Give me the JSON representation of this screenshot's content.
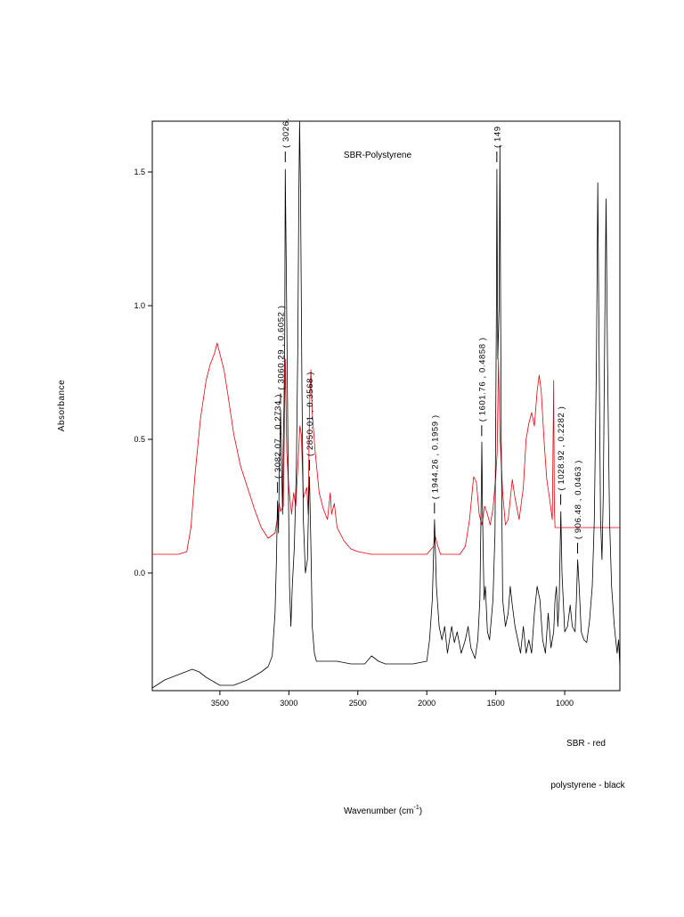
{
  "chart_data": {
    "type": "line",
    "title": "SBR-Polystyrene",
    "xlabel": "Wavenumber (cm",
    "xlabel_superscript": "-1",
    "xlabel_suffix": ")",
    "ylabel": "Absorbance",
    "xlim": [
      3990,
      600
    ],
    "ylim": [
      -0.44,
      1.69
    ],
    "x_reversed": true,
    "grid": false,
    "legend_text": [
      "SBR - red",
      "polystyrene - black"
    ],
    "x_ticks": [
      {
        "value": 3500,
        "label": "3500"
      },
      {
        "value": 3000,
        "label": "3000"
      },
      {
        "value": 2500,
        "label": "2500"
      },
      {
        "value": 2000,
        "label": "2000"
      },
      {
        "value": 1500,
        "label": "1500"
      },
      {
        "value": 1000,
        "label": "1000"
      }
    ],
    "y_ticks": [
      {
        "value": 0.0,
        "label": "0.0"
      },
      {
        "value": 0.5,
        "label": "0.5"
      },
      {
        "value": 1.0,
        "label": "1.0"
      },
      {
        "value": 1.5,
        "label": "1.5"
      }
    ],
    "series": [
      {
        "name": "SBR",
        "color": "#e8000b",
        "points": [
          [
            3990,
            0.07
          ],
          [
            3900,
            0.07
          ],
          [
            3800,
            0.07
          ],
          [
            3740,
            0.08
          ],
          [
            3710,
            0.17
          ],
          [
            3680,
            0.37
          ],
          [
            3640,
            0.58
          ],
          [
            3600,
            0.72
          ],
          [
            3570,
            0.78
          ],
          [
            3540,
            0.82
          ],
          [
            3520,
            0.86
          ],
          [
            3500,
            0.82
          ],
          [
            3470,
            0.76
          ],
          [
            3440,
            0.66
          ],
          [
            3400,
            0.52
          ],
          [
            3350,
            0.4
          ],
          [
            3300,
            0.32
          ],
          [
            3250,
            0.24
          ],
          [
            3200,
            0.17
          ],
          [
            3150,
            0.13
          ],
          [
            3100,
            0.15
          ],
          [
            3085,
            0.2
          ],
          [
            3070,
            0.26
          ],
          [
            3060,
            0.23
          ],
          [
            3040,
            0.25
          ],
          [
            3025,
            0.8
          ],
          [
            3015,
            0.45
          ],
          [
            3000,
            0.32
          ],
          [
            2980,
            0.22
          ],
          [
            2965,
            0.3
          ],
          [
            2950,
            0.25
          ],
          [
            2930,
            0.45
          ],
          [
            2920,
            0.55
          ],
          [
            2910,
            0.52
          ],
          [
            2895,
            0.28
          ],
          [
            2870,
            0.32
          ],
          [
            2860,
            0.22
          ],
          [
            2850,
            0.62
          ],
          [
            2840,
            0.76
          ],
          [
            2830,
            0.6
          ],
          [
            2810,
            0.46
          ],
          [
            2780,
            0.3
          ],
          [
            2750,
            0.24
          ],
          [
            2720,
            0.2
          ],
          [
            2700,
            0.3
          ],
          [
            2690,
            0.22
          ],
          [
            2670,
            0.26
          ],
          [
            2650,
            0.17
          ],
          [
            2600,
            0.12
          ],
          [
            2550,
            0.09
          ],
          [
            2500,
            0.08
          ],
          [
            2400,
            0.07
          ],
          [
            2300,
            0.07
          ],
          [
            2200,
            0.07
          ],
          [
            2100,
            0.07
          ],
          [
            2000,
            0.07
          ],
          [
            1950,
            0.1
          ],
          [
            1940,
            0.14
          ],
          [
            1920,
            0.1
          ],
          [
            1900,
            0.07
          ],
          [
            1850,
            0.07
          ],
          [
            1800,
            0.07
          ],
          [
            1760,
            0.07
          ],
          [
            1720,
            0.1
          ],
          [
            1690,
            0.2
          ],
          [
            1660,
            0.36
          ],
          [
            1640,
            0.34
          ],
          [
            1620,
            0.22
          ],
          [
            1600,
            0.18
          ],
          [
            1580,
            0.25
          ],
          [
            1560,
            0.22
          ],
          [
            1540,
            0.18
          ],
          [
            1520,
            0.24
          ],
          [
            1500,
            0.36
          ],
          [
            1490,
            0.45
          ],
          [
            1480,
            0.8
          ],
          [
            1470,
            0.52
          ],
          [
            1450,
            0.3
          ],
          [
            1430,
            0.18
          ],
          [
            1410,
            0.2
          ],
          [
            1380,
            0.35
          ],
          [
            1360,
            0.28
          ],
          [
            1330,
            0.2
          ],
          [
            1300,
            0.32
          ],
          [
            1280,
            0.5
          ],
          [
            1260,
            0.56
          ],
          [
            1240,
            0.6
          ],
          [
            1220,
            0.55
          ],
          [
            1200,
            0.68
          ],
          [
            1185,
            0.74
          ],
          [
            1170,
            0.68
          ],
          [
            1150,
            0.5
          ],
          [
            1130,
            0.35
          ],
          [
            1110,
            0.28
          ],
          [
            1090,
            0.2
          ],
          [
            1080,
            0.72
          ],
          [
            1075,
            0.25
          ],
          [
            1070,
            0.17
          ],
          [
            1000,
            0.17
          ],
          [
            900,
            0.17
          ],
          [
            800,
            0.17
          ],
          [
            700,
            0.17
          ],
          [
            600,
            0.17
          ]
        ]
      },
      {
        "name": "polystyrene",
        "color": "#000000",
        "points": [
          [
            3990,
            -0.43
          ],
          [
            3900,
            -0.4
          ],
          [
            3800,
            -0.38
          ],
          [
            3700,
            -0.36
          ],
          [
            3650,
            -0.37
          ],
          [
            3600,
            -0.39
          ],
          [
            3500,
            -0.42
          ],
          [
            3400,
            -0.42
          ],
          [
            3300,
            -0.4
          ],
          [
            3200,
            -0.37
          ],
          [
            3150,
            -0.35
          ],
          [
            3120,
            -0.31
          ],
          [
            3100,
            -0.15
          ],
          [
            3090,
            0.05
          ],
          [
            3082,
            0.27
          ],
          [
            3075,
            0.15
          ],
          [
            3070,
            0.35
          ],
          [
            3060,
            0.61
          ],
          [
            3045,
            0.22
          ],
          [
            3040,
            0.5
          ],
          [
            3035,
            0.62
          ],
          [
            3030,
            0.9
          ],
          [
            3026,
            1.51
          ],
          [
            3015,
            0.95
          ],
          [
            3005,
            0.4
          ],
          [
            2995,
            -0.05
          ],
          [
            2985,
            -0.2
          ],
          [
            2975,
            -0.05
          ],
          [
            2960,
            0.1
          ],
          [
            2945,
            0.4
          ],
          [
            2935,
            0.85
          ],
          [
            2928,
            1.4
          ],
          [
            2922,
            1.69
          ],
          [
            2915,
            1.4
          ],
          [
            2905,
            0.7
          ],
          [
            2895,
            0.2
          ],
          [
            2880,
            0.0
          ],
          [
            2865,
            0.05
          ],
          [
            2855,
            0.3
          ],
          [
            2850,
            0.36
          ],
          [
            2840,
            0.1
          ],
          [
            2830,
            -0.2
          ],
          [
            2815,
            -0.3
          ],
          [
            2800,
            -0.33
          ],
          [
            2750,
            -0.33
          ],
          [
            2650,
            -0.33
          ],
          [
            2550,
            -0.34
          ],
          [
            2450,
            -0.34
          ],
          [
            2400,
            -0.31
          ],
          [
            2350,
            -0.33
          ],
          [
            2300,
            -0.34
          ],
          [
            2200,
            -0.34
          ],
          [
            2100,
            -0.34
          ],
          [
            2000,
            -0.33
          ],
          [
            1980,
            -0.25
          ],
          [
            1960,
            -0.1
          ],
          [
            1944,
            0.2
          ],
          [
            1930,
            -0.05
          ],
          [
            1910,
            -0.2
          ],
          [
            1890,
            -0.25
          ],
          [
            1870,
            -0.2
          ],
          [
            1850,
            -0.3
          ],
          [
            1820,
            -0.2
          ],
          [
            1800,
            -0.26
          ],
          [
            1780,
            -0.22
          ],
          [
            1750,
            -0.3
          ],
          [
            1720,
            -0.25
          ],
          [
            1700,
            -0.2
          ],
          [
            1680,
            -0.28
          ],
          [
            1650,
            -0.32
          ],
          [
            1630,
            -0.25
          ],
          [
            1615,
            -0.1
          ],
          [
            1605,
            0.3
          ],
          [
            1601,
            0.49
          ],
          [
            1595,
            0.2
          ],
          [
            1585,
            -0.1
          ],
          [
            1575,
            -0.05
          ],
          [
            1560,
            -0.22
          ],
          [
            1545,
            -0.25
          ],
          [
            1520,
            -0.1
          ],
          [
            1505,
            0.15
          ],
          [
            1495,
            1.0
          ],
          [
            1492,
            1.51
          ],
          [
            1485,
            0.8
          ],
          [
            1475,
            1.0
          ],
          [
            1470,
            1.6
          ],
          [
            1460,
            0.5
          ],
          [
            1450,
            -0.1
          ],
          [
            1430,
            -0.2
          ],
          [
            1410,
            -0.15
          ],
          [
            1395,
            -0.05
          ],
          [
            1380,
            -0.12
          ],
          [
            1360,
            -0.2
          ],
          [
            1340,
            -0.25
          ],
          [
            1320,
            -0.3
          ],
          [
            1300,
            -0.2
          ],
          [
            1280,
            -0.3
          ],
          [
            1260,
            -0.25
          ],
          [
            1240,
            -0.3
          ],
          [
            1220,
            -0.15
          ],
          [
            1200,
            -0.05
          ],
          [
            1180,
            -0.1
          ],
          [
            1160,
            -0.25
          ],
          [
            1140,
            -0.3
          ],
          [
            1120,
            -0.15
          ],
          [
            1100,
            -0.28
          ],
          [
            1080,
            -0.22
          ],
          [
            1070,
            -0.1
          ],
          [
            1060,
            -0.05
          ],
          [
            1050,
            -0.2
          ],
          [
            1040,
            -0.1
          ],
          [
            1028,
            0.23
          ],
          [
            1020,
            0.0
          ],
          [
            1000,
            -0.22
          ],
          [
            980,
            -0.2
          ],
          [
            960,
            -0.12
          ],
          [
            945,
            -0.2
          ],
          [
            925,
            -0.22
          ],
          [
            915,
            -0.1
          ],
          [
            906,
            0.05
          ],
          [
            895,
            -0.05
          ],
          [
            880,
            -0.22
          ],
          [
            860,
            -0.25
          ],
          [
            840,
            -0.26
          ],
          [
            820,
            -0.18
          ],
          [
            800,
            -0.05
          ],
          [
            785,
            0.2
          ],
          [
            770,
            0.8
          ],
          [
            760,
            1.46
          ],
          [
            752,
            0.9
          ],
          [
            740,
            0.2
          ],
          [
            730,
            0.05
          ],
          [
            720,
            0.3
          ],
          [
            710,
            0.9
          ],
          [
            700,
            1.4
          ],
          [
            690,
            0.8
          ],
          [
            675,
            0.2
          ],
          [
            660,
            -0.05
          ],
          [
            640,
            -0.2
          ],
          [
            620,
            -0.3
          ],
          [
            610,
            -0.25
          ],
          [
            600,
            -0.35
          ]
        ]
      }
    ],
    "annotations": [
      {
        "text": "( 3082.07 , 0.2734 )",
        "x": 3082.07,
        "y": 0.2734
      },
      {
        "text": "( 3060.29 , 0.6052 )",
        "x": 3060.29,
        "y": 0.6052
      },
      {
        "text": "( 3026.",
        "x": 3026,
        "y": 1.51
      },
      {
        "text": "( 2850.01 , 0.3568 )",
        "x": 2850.01,
        "y": 0.3568
      },
      {
        "text": "( 1944.26 , 0.1959 )",
        "x": 1944.26,
        "y": 0.1959
      },
      {
        "text": "( 1601.76 , 0.4858 )",
        "x": 1601.76,
        "y": 0.4858
      },
      {
        "text": "( 149",
        "x": 1492,
        "y": 1.51
      },
      {
        "text": "( 1028.92 , 0.2282 )",
        "x": 1028.92,
        "y": 0.2282
      },
      {
        "text": "( 906.48 , 0.0463 )",
        "x": 906.48,
        "y": 0.0463
      }
    ]
  }
}
